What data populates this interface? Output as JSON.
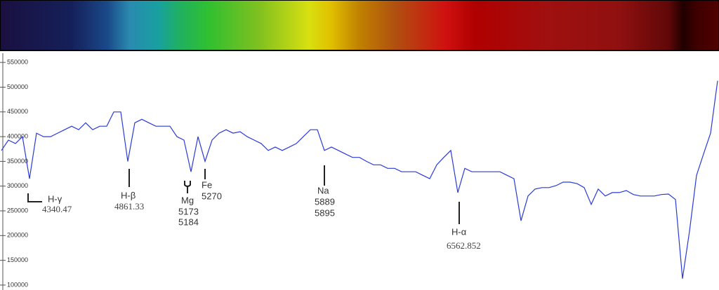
{
  "chart_data": {
    "type": "line",
    "color": "#2a3ad8",
    "ylim": [
      90000,
      570000
    ],
    "yticks": [
      100000,
      150000,
      200000,
      250000,
      300000,
      350000,
      400000,
      450000,
      500000,
      550000
    ],
    "values": [
      372000,
      393000,
      386000,
      400000,
      315000,
      407000,
      400000,
      400000,
      407000,
      414000,
      421000,
      414000,
      428000,
      414000,
      421000,
      421000,
      450000,
      450000,
      350000,
      428000,
      435000,
      428000,
      421000,
      421000,
      421000,
      400000,
      393000,
      329000,
      400000,
      350000,
      393000,
      407000,
      414000,
      407000,
      410000,
      400000,
      393000,
      386000,
      372000,
      379000,
      372000,
      379000,
      386000,
      400000,
      414000,
      414000,
      372000,
      379000,
      372000,
      365000,
      358000,
      358000,
      350000,
      343000,
      343000,
      336000,
      336000,
      329000,
      329000,
      329000,
      322000,
      315000,
      343000,
      358000,
      372000,
      287000,
      336000,
      329000,
      329000,
      329000,
      329000,
      329000,
      322000,
      315000,
      230000,
      280000,
      294000,
      297000,
      297000,
      301000,
      308000,
      308000,
      305000,
      297000,
      263000,
      294000,
      280000,
      287000,
      287000,
      291000,
      283000,
      280000,
      280000,
      280000,
      283000,
      284000,
      273000,
      113000,
      209000,
      322000,
      365000,
      407000,
      513000
    ],
    "annotations": [
      {
        "lines": [
          "H-γ",
          "4340.47"
        ]
      },
      {
        "lines": [
          "H-β",
          "4861.33"
        ]
      },
      {
        "lines": [
          "Mg",
          "5173",
          "5184"
        ]
      },
      {
        "lines": [
          "Fe",
          "5270"
        ]
      },
      {
        "lines": [
          "Na",
          "5889",
          "5895"
        ]
      },
      {
        "lines": [
          "H-α",
          "6562.852"
        ]
      }
    ]
  }
}
